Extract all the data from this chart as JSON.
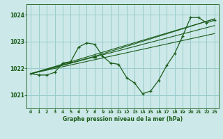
{
  "background_color": "#cce8e8",
  "grid_color": "#99cccc",
  "line_color": "#1a5c1a",
  "title": "Graphe pression niveau de la mer (hPa)",
  "xlim": [
    -0.5,
    23.5
  ],
  "ylim": [
    1020.5,
    1024.4
  ],
  "yticks": [
    1021,
    1022,
    1023,
    1024
  ],
  "xticks": [
    0,
    1,
    2,
    3,
    4,
    5,
    6,
    7,
    8,
    9,
    10,
    11,
    12,
    13,
    14,
    15,
    16,
    17,
    18,
    19,
    20,
    21,
    22,
    23
  ],
  "main_x": [
    0,
    1,
    2,
    3,
    4,
    5,
    6,
    7,
    8,
    9,
    10,
    11,
    12,
    13,
    14,
    15,
    16,
    17,
    18,
    19,
    20,
    21,
    22,
    23
  ],
  "main_y": [
    1021.8,
    1021.75,
    1021.75,
    1021.85,
    1022.2,
    1022.25,
    1022.8,
    1022.95,
    1022.9,
    1022.45,
    1022.2,
    1022.15,
    1021.65,
    1021.45,
    1021.05,
    1021.15,
    1021.55,
    1022.1,
    1022.55,
    1023.2,
    1023.9,
    1023.9,
    1023.7,
    1023.8
  ],
  "ref_line1": {
    "x": [
      0,
      23
    ],
    "y": [
      1021.8,
      1023.85
    ]
  },
  "ref_line2": {
    "x": [
      0,
      23
    ],
    "y": [
      1021.8,
      1023.6
    ]
  },
  "ref_line3": {
    "x": [
      0,
      23
    ],
    "y": [
      1021.8,
      1023.3
    ]
  },
  "seg_line": {
    "x": [
      0,
      8,
      23
    ],
    "y": [
      1021.8,
      1022.45,
      1023.85
    ]
  },
  "triangle_x": [
    8
  ],
  "triangle_y": [
    1022.45
  ]
}
